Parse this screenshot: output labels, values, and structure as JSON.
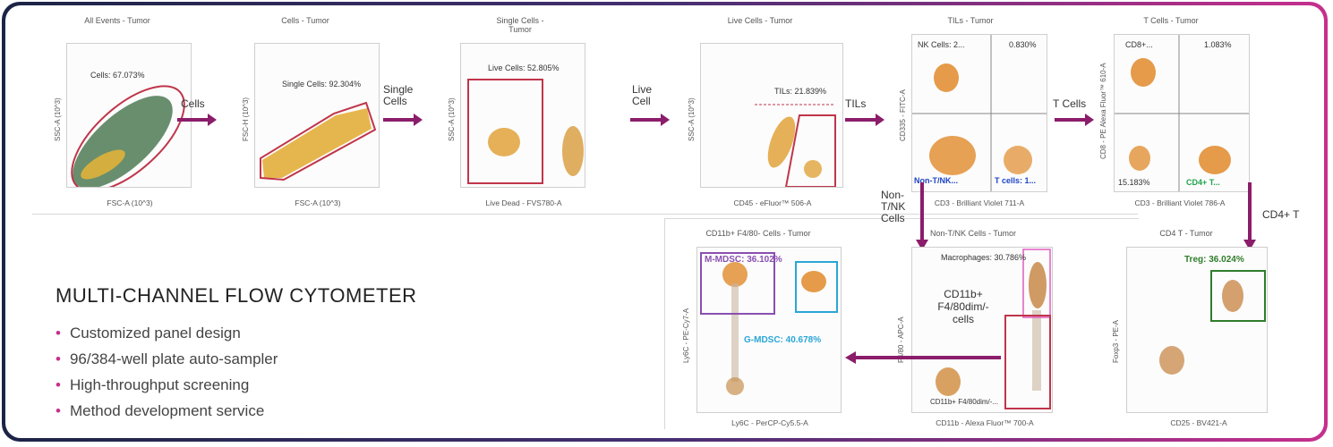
{
  "panels": {
    "all_events": {
      "title": "All Events - Tumor",
      "xlabel": "FSC-A (10^3)",
      "ylabel": "SSC-A (10^3)",
      "gate": "Cells: 67.073%"
    },
    "cells": {
      "title": "Cells - Tumor",
      "xlabel": "FSC-A (10^3)",
      "ylabel": "FSC-H (10^3)",
      "gate": "Single Cells: 92.304%"
    },
    "single_cells": {
      "title": "Single Cells - Tumor",
      "xlabel": "Live Dead - FVS780-A",
      "ylabel": "SSC-A (10^3)",
      "gate": "Live Cells: 52.805%"
    },
    "live_cells": {
      "title": "Live Cells - Tumor",
      "xlabel": "CD45 - eFluor™ 506-A",
      "ylabel": "SSC-A (10^3)",
      "gate": "TILs: 21.839%"
    },
    "tils": {
      "title": "TILs - Tumor",
      "xlabel": "CD3 - Brilliant Violet 711-A",
      "ylabel": "CD335 - FITC-A",
      "q_nk": "NK Cells: 2...",
      "q_tr": "0.830%",
      "q_bl": "Non-T/NK...",
      "q_br": "T cells: 1..."
    },
    "t_cells": {
      "title": "T Cells - Tumor",
      "xlabel": "CD3 - Brilliant Violet 786-A",
      "ylabel": "CD8 - PE Alexa Fluor™ 610-A",
      "q_tl": "CD8+...",
      "q_tr": "1.083%",
      "q_bl": "15.183%",
      "q_br": "CD4+ T..."
    },
    "cd11b": {
      "title": "CD11b+ F4/80- Cells - Tumor",
      "xlabel": "Ly6C - PerCP-Cy5.5-A",
      "ylabel": "Ly6C - PE-Cy7-A",
      "mmdsc": "M-MDSC: 36.102%",
      "gmdsc": "G-MDSC: 40.678%"
    },
    "non_tnk": {
      "title": "Non-T/NK Cells - Tumor",
      "xlabel": "CD11b - Alexa Fluor™ 700-A",
      "ylabel": "F4/80 - APC-A",
      "macro": "Macrophages: 30.786%",
      "cd11b_gate": "CD11b+ F4/80dim/-..."
    },
    "cd4": {
      "title": "CD4 T - Tumor",
      "xlabel": "CD25 - BV421-A",
      "ylabel": "Foxp3 - PE-A",
      "treg": "Treg: 36.024%"
    }
  },
  "arrows": {
    "a1": "Cells",
    "a2": "Single Cells",
    "a3": "Live Cell",
    "a4": "TILs",
    "a5": "T Cells",
    "a6": "CD4+ T",
    "a7": "Non-T/NK Cells",
    "a8_l1": "CD11b+",
    "a8_l2": "F4/80dim/-",
    "a8_l3": "cells"
  },
  "info": {
    "heading": "MULTI-CHANNEL FLOW CYTOMETER",
    "bullets": [
      "Customized panel design",
      "96/384-well plate auto-sampler",
      "High-throughput screening",
      "Method development service"
    ]
  },
  "colors": {
    "gate_red": "#c0354a",
    "arrow": "#8b1d6b",
    "mmdsc": "#8a4fb0",
    "gmdsc": "#2aa6d6",
    "treg": "#2f7d2a",
    "tcell": "#1e44c4",
    "cd4": "#1ba34a"
  }
}
